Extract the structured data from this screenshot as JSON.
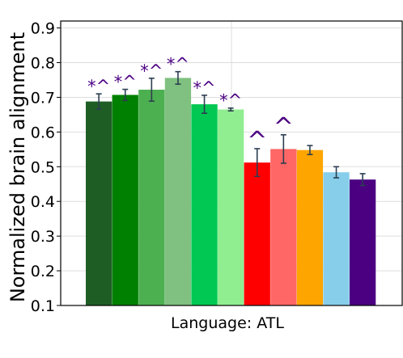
{
  "chart_data": {
    "type": "bar",
    "title": "",
    "xlabel": "Language: ATL",
    "ylabel": "Normalized brain alignment",
    "ylim": [
      0.1,
      0.92
    ],
    "yticks": [
      0.1,
      0.2,
      0.3,
      0.4,
      0.5,
      0.6,
      0.7,
      0.8,
      0.9
    ],
    "ytick_labels": [
      "0.1",
      "0.2",
      "0.3",
      "0.4",
      "0.5",
      "0.6",
      "0.7",
      "0.8",
      "0.9"
    ],
    "grid": true,
    "bars": [
      {
        "value": 0.688,
        "err": 0.022,
        "color": "#1e5e25",
        "annotation": "*^"
      },
      {
        "value": 0.707,
        "err": 0.016,
        "color": "#008000",
        "annotation": "*^"
      },
      {
        "value": 0.722,
        "err": 0.033,
        "color": "#4caf50",
        "annotation": "*^"
      },
      {
        "value": 0.756,
        "err": 0.018,
        "color": "#80c080",
        "annotation": "*^"
      },
      {
        "value": 0.68,
        "err": 0.026,
        "color": "#00c853",
        "annotation": "*^"
      },
      {
        "value": 0.665,
        "err": 0.004,
        "color": "#90ee90",
        "annotation": "*^"
      },
      {
        "value": 0.512,
        "err": 0.04,
        "color": "#ff0000",
        "annotation": "^"
      },
      {
        "value": 0.551,
        "err": 0.041,
        "color": "#ff6666",
        "annotation": "^"
      },
      {
        "value": 0.548,
        "err": 0.013,
        "color": "#ffa500",
        "annotation": ""
      },
      {
        "value": 0.484,
        "err": 0.016,
        "color": "#87ceeb",
        "annotation": ""
      },
      {
        "value": 0.463,
        "err": 0.017,
        "color": "#4b0082",
        "annotation": ""
      }
    ],
    "colors": {
      "errorbar": "#2c3e50",
      "annotation": "#4b0082",
      "grid": "#dddddd"
    }
  }
}
